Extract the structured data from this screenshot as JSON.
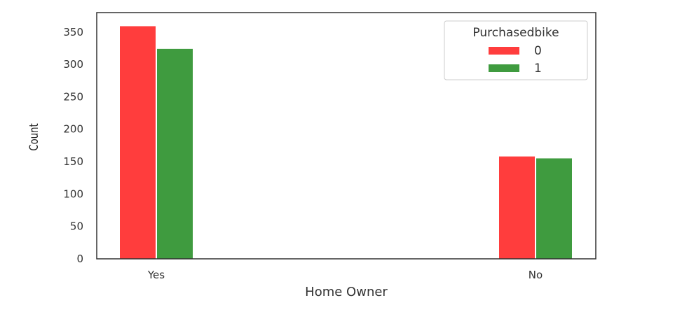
{
  "chart_data": {
    "type": "bar",
    "categories": [
      "Yes",
      "No"
    ],
    "series": [
      {
        "name": "0",
        "color": "#ff3d3d",
        "values": [
          359,
          158
        ]
      },
      {
        "name": "1",
        "color": "#3f9b3f",
        "values": [
          324,
          155
        ]
      }
    ],
    "xlabel": "Home Owner",
    "ylabel": "Count",
    "legend_title": "Purchasedbike",
    "legend_placement": "top-right",
    "ylim": [
      0,
      380
    ],
    "yticks": [
      0,
      50,
      100,
      150,
      200,
      250,
      300,
      350
    ],
    "grid": false
  }
}
